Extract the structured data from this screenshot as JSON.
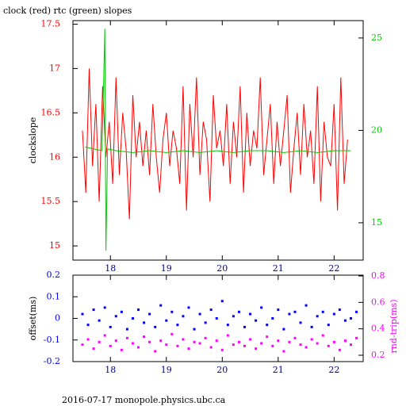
{
  "chart_data": [
    {
      "type": "line",
      "title": "clock (red) rtc (green) slopes",
      "ylabel": "clockslope",
      "xlim": [
        17.33,
        22.52
      ],
      "xticks": [
        18,
        19,
        20,
        21,
        22
      ],
      "ylim": [
        14.84,
        17.54
      ],
      "yticks": [
        15,
        15.5,
        16,
        16.5,
        17,
        17.5
      ],
      "y2lim": [
        12.98,
        25.94
      ],
      "y2ticks": [
        15,
        20,
        25
      ],
      "series": [
        {
          "color": "#ff0000",
          "x": [
            17.5,
            17.56,
            17.62,
            17.68,
            17.74,
            17.8,
            17.86,
            17.92,
            17.98,
            18.04,
            18.1,
            18.16,
            18.22,
            18.28,
            18.34,
            18.4,
            18.46,
            18.52,
            18.58,
            18.64,
            18.7,
            18.76,
            18.82,
            18.88,
            18.94,
            19.0,
            19.06,
            19.12,
            19.18,
            19.24,
            19.3,
            19.36,
            19.42,
            19.48,
            19.54,
            19.6,
            19.66,
            19.72,
            19.78,
            19.84,
            19.9,
            19.96,
            20.02,
            20.08,
            20.14,
            20.2,
            20.26,
            20.32,
            20.38,
            20.44,
            20.5,
            20.56,
            20.62,
            20.68,
            20.74,
            20.8,
            20.86,
            20.92,
            20.98,
            21.04,
            21.1,
            21.16,
            21.22,
            21.28,
            21.34,
            21.4,
            21.46,
            21.52,
            21.58,
            21.64,
            21.7,
            21.76,
            21.82,
            21.88,
            21.94,
            22.0,
            22.06,
            22.12,
            22.18,
            22.24
          ],
          "values": [
            16.3,
            15.6,
            17.0,
            15.9,
            16.6,
            15.5,
            16.8,
            16.0,
            16.4,
            15.7,
            16.9,
            15.8,
            16.5,
            16.1,
            15.3,
            16.7,
            16.0,
            16.4,
            15.9,
            16.3,
            15.8,
            16.6,
            16.0,
            15.6,
            16.2,
            16.5,
            15.9,
            16.3,
            16.1,
            15.7,
            16.8,
            15.4,
            16.6,
            16.0,
            16.9,
            15.8,
            16.4,
            16.2,
            15.5,
            16.7,
            16.1,
            16.3,
            15.9,
            16.6,
            15.7,
            16.4,
            16.0,
            16.8,
            15.6,
            16.5,
            15.9,
            16.3,
            16.1,
            16.9,
            15.8,
            16.2,
            16.6,
            15.7,
            16.4,
            15.9,
            16.3,
            16.7,
            15.6,
            16.1,
            16.5,
            15.8,
            16.6,
            16.0,
            16.3,
            15.7,
            16.8,
            15.5,
            16.4,
            16.0,
            15.9,
            16.6,
            15.4,
            16.9,
            15.7,
            16.2
          ]
        },
        {
          "color": "#00cc00",
          "axis": "y2",
          "x": [
            17.55,
            17.7,
            17.85,
            17.9,
            17.92,
            17.95,
            18.1,
            18.4,
            18.7,
            19.0,
            19.3,
            19.6,
            19.9,
            20.2,
            20.5,
            20.8,
            21.1,
            21.4,
            21.7,
            22.0,
            22.3
          ],
          "values": [
            19.1,
            19.0,
            18.9,
            25.5,
            13.5,
            19.0,
            18.9,
            18.8,
            18.9,
            18.8,
            18.9,
            18.8,
            18.9,
            18.8,
            18.9,
            18.9,
            18.8,
            18.9,
            18.8,
            18.9,
            18.9
          ]
        }
      ]
    },
    {
      "type": "scatter",
      "ylabel": "offset(ms)",
      "y2label": "rnd-trip(ms)",
      "xlim": [
        17.33,
        22.52
      ],
      "xticks": [
        18,
        19,
        20,
        21,
        22
      ],
      "ylim": [
        -0.2,
        0.2
      ],
      "yticks": [
        -0.2,
        -0.1,
        0,
        0.1,
        0.2
      ],
      "y2lim": [
        0.152,
        0.806
      ],
      "y2ticks": [
        0.2,
        0.4,
        0.6,
        0.8
      ],
      "x": [
        17.5,
        17.6,
        17.7,
        17.8,
        17.9,
        18.0,
        18.1,
        18.2,
        18.3,
        18.4,
        18.5,
        18.6,
        18.7,
        18.8,
        18.9,
        19.0,
        19.1,
        19.2,
        19.3,
        19.4,
        19.5,
        19.6,
        19.7,
        19.8,
        19.9,
        20.0,
        20.1,
        20.2,
        20.3,
        20.4,
        20.5,
        20.6,
        20.7,
        20.8,
        20.9,
        21.0,
        21.1,
        21.2,
        21.3,
        21.4,
        21.5,
        21.6,
        21.7,
        21.8,
        21.9,
        22.0,
        22.1,
        22.2,
        22.3,
        22.4
      ],
      "series": [
        {
          "color": "#0000ff",
          "values": [
            0.02,
            -0.03,
            0.04,
            -0.01,
            0.05,
            -0.04,
            0.01,
            0.03,
            -0.05,
            0.0,
            0.04,
            -0.02,
            0.02,
            -0.04,
            0.06,
            -0.01,
            0.03,
            -0.03,
            0.01,
            0.05,
            -0.05,
            0.02,
            -0.02,
            0.04,
            0.0,
            0.08,
            -0.03,
            0.01,
            0.03,
            -0.04,
            0.02,
            -0.01,
            0.05,
            -0.03,
            0.0,
            0.04,
            -0.05,
            0.02,
            0.03,
            -0.02,
            0.06,
            -0.04,
            0.01,
            0.03,
            -0.03,
            0.02,
            0.04,
            -0.01,
            0.0,
            0.03
          ]
        },
        {
          "color": "#ff00ff",
          "axis": "y2",
          "values": [
            0.28,
            0.32,
            0.25,
            0.3,
            0.35,
            0.27,
            0.31,
            0.24,
            0.33,
            0.29,
            0.26,
            0.34,
            0.3,
            0.23,
            0.31,
            0.28,
            0.36,
            0.27,
            0.32,
            0.25,
            0.3,
            0.29,
            0.33,
            0.26,
            0.31,
            0.24,
            0.35,
            0.28,
            0.3,
            0.27,
            0.32,
            0.25,
            0.29,
            0.34,
            0.27,
            0.31,
            0.23,
            0.3,
            0.33,
            0.28,
            0.26,
            0.32,
            0.29,
            0.35,
            0.27,
            0.3,
            0.24,
            0.31,
            0.28,
            0.33
          ]
        }
      ],
      "footer": "2016-07-17 monopole.physics.ubc.ca"
    }
  ]
}
